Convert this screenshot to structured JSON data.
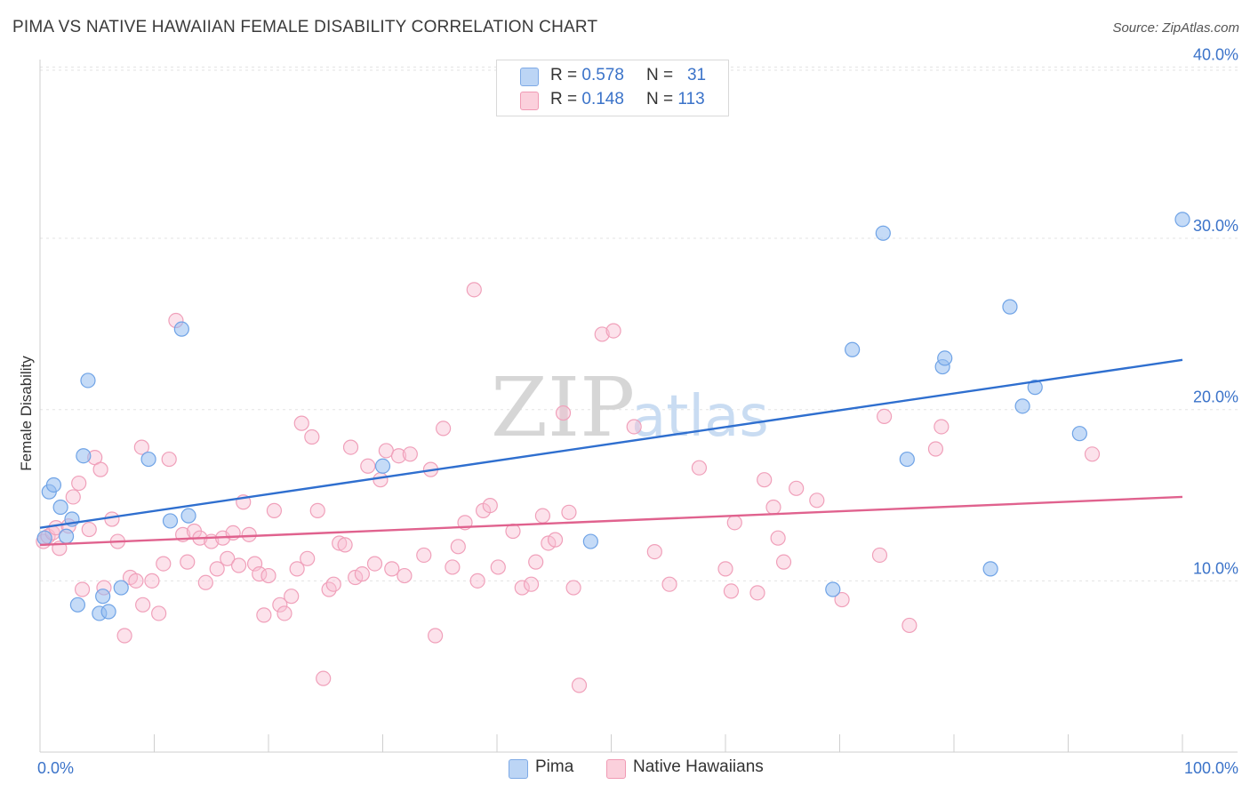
{
  "header": {
    "title": "PIMA VS NATIVE HAWAIIAN FEMALE DISABILITY CORRELATION CHART",
    "source": "Source: ZipAtlas.com"
  },
  "watermark": {
    "text_zip": "ZIP",
    "text_atlas": "atlas"
  },
  "legend_top": {
    "rows": [
      {
        "r_label": "R =",
        "r_value": "0.578",
        "n_label": "N =",
        "n_value": "31"
      },
      {
        "r_label": "R =",
        "r_value": "0.148",
        "n_label": "N =",
        "n_value": "113"
      }
    ]
  },
  "legend_bottom": {
    "items": [
      "Pima",
      "Native Hawaiians"
    ]
  },
  "chart_data": {
    "type": "scatter",
    "title": "PIMA VS NATIVE HAWAIIAN FEMALE DISABILITY CORRELATION CHART",
    "xlabel": "",
    "ylabel": "Female Disability",
    "xlim": [
      0,
      100
    ],
    "ylim": [
      0,
      40.8
    ],
    "x_tick_labels": [
      "0.0%",
      "100.0%"
    ],
    "y_ticks": [
      10,
      20,
      30,
      40
    ],
    "y_tick_labels": [
      "10.0%",
      "20.0%",
      "30.0%",
      "40.0%"
    ],
    "grid": "horizontal dashed",
    "legend_position": "top-center and bottom",
    "colors": {
      "pima": "#6fa3e6",
      "pima_line": "#2f6fcf",
      "hawaiian": "#f4a7bf",
      "hawaiian_line": "#e0628e",
      "tick_label": "#3b73c9"
    },
    "series": [
      {
        "name": "Pima",
        "r": 0.578,
        "n": 31,
        "trend": [
          [
            0,
            13.1
          ],
          [
            100,
            22.9
          ]
        ],
        "points": [
          [
            0.4,
            12.5
          ],
          [
            0.8,
            15.2
          ],
          [
            1.2,
            15.6
          ],
          [
            1.8,
            14.3
          ],
          [
            2.3,
            12.6
          ],
          [
            2.8,
            13.6
          ],
          [
            3.3,
            8.6
          ],
          [
            3.8,
            17.3
          ],
          [
            4.2,
            21.7
          ],
          [
            5.2,
            8.1
          ],
          [
            5.5,
            9.1
          ],
          [
            6.0,
            8.2
          ],
          [
            7.1,
            9.6
          ],
          [
            9.5,
            17.1
          ],
          [
            11.4,
            13.5
          ],
          [
            12.4,
            24.7
          ],
          [
            13.0,
            13.8
          ],
          [
            30.0,
            16.7
          ],
          [
            48.2,
            12.3
          ],
          [
            69.4,
            9.5
          ],
          [
            71.1,
            23.5
          ],
          [
            73.8,
            30.3
          ],
          [
            75.9,
            17.1
          ],
          [
            79.0,
            22.5
          ],
          [
            79.2,
            23.0
          ],
          [
            83.2,
            10.7
          ],
          [
            84.9,
            26.0
          ],
          [
            86.0,
            20.2
          ],
          [
            87.1,
            21.3
          ],
          [
            91.0,
            18.6
          ],
          [
            100.0,
            31.1
          ]
        ]
      },
      {
        "name": "Native Hawaiians",
        "r": 0.148,
        "n": 113,
        "trend": [
          [
            0,
            12.1
          ],
          [
            100,
            14.9
          ]
        ],
        "points": [
          [
            0.3,
            12.3
          ],
          [
            0.7,
            12.6
          ],
          [
            1.1,
            12.8
          ],
          [
            1.4,
            13.1
          ],
          [
            1.7,
            11.9
          ],
          [
            2.5,
            13.2
          ],
          [
            2.9,
            14.9
          ],
          [
            3.4,
            15.7
          ],
          [
            3.7,
            9.5
          ],
          [
            4.3,
            13.0
          ],
          [
            4.8,
            17.2
          ],
          [
            5.3,
            16.5
          ],
          [
            5.6,
            9.6
          ],
          [
            6.3,
            13.6
          ],
          [
            6.8,
            12.3
          ],
          [
            7.4,
            6.8
          ],
          [
            7.9,
            10.2
          ],
          [
            8.4,
            10.0
          ],
          [
            8.9,
            17.8
          ],
          [
            9.0,
            8.6
          ],
          [
            9.8,
            10.0
          ],
          [
            10.4,
            8.1
          ],
          [
            10.8,
            11.0
          ],
          [
            11.3,
            17.1
          ],
          [
            11.9,
            25.2
          ],
          [
            12.5,
            12.7
          ],
          [
            12.9,
            11.1
          ],
          [
            13.5,
            12.9
          ],
          [
            14.0,
            12.5
          ],
          [
            14.5,
            9.9
          ],
          [
            15.0,
            12.3
          ],
          [
            15.5,
            10.7
          ],
          [
            16.0,
            12.5
          ],
          [
            16.4,
            11.3
          ],
          [
            16.9,
            12.8
          ],
          [
            17.4,
            10.9
          ],
          [
            17.8,
            14.6
          ],
          [
            18.3,
            12.7
          ],
          [
            18.8,
            11.0
          ],
          [
            19.2,
            10.4
          ],
          [
            19.6,
            8.0
          ],
          [
            20.0,
            10.3
          ],
          [
            20.5,
            14.1
          ],
          [
            21.0,
            8.6
          ],
          [
            21.4,
            8.1
          ],
          [
            22.0,
            9.1
          ],
          [
            22.5,
            10.7
          ],
          [
            22.9,
            19.2
          ],
          [
            23.4,
            11.3
          ],
          [
            23.8,
            18.4
          ],
          [
            24.3,
            14.1
          ],
          [
            24.8,
            4.3
          ],
          [
            25.3,
            9.5
          ],
          [
            25.7,
            9.8
          ],
          [
            26.2,
            12.2
          ],
          [
            26.7,
            12.1
          ],
          [
            27.2,
            17.8
          ],
          [
            27.6,
            10.2
          ],
          [
            28.2,
            10.4
          ],
          [
            28.7,
            16.7
          ],
          [
            29.3,
            11.0
          ],
          [
            29.8,
            15.9
          ],
          [
            30.3,
            17.6
          ],
          [
            30.8,
            10.7
          ],
          [
            31.4,
            17.3
          ],
          [
            31.9,
            10.3
          ],
          [
            32.4,
            17.4
          ],
          [
            33.6,
            11.5
          ],
          [
            34.2,
            16.5
          ],
          [
            34.6,
            6.8
          ],
          [
            35.3,
            18.9
          ],
          [
            36.1,
            10.8
          ],
          [
            36.6,
            12.0
          ],
          [
            37.2,
            13.4
          ],
          [
            38.0,
            27.0
          ],
          [
            38.3,
            10.0
          ],
          [
            38.8,
            14.1
          ],
          [
            39.4,
            14.4
          ],
          [
            40.1,
            10.8
          ],
          [
            41.4,
            12.9
          ],
          [
            42.2,
            9.6
          ],
          [
            43.0,
            9.8
          ],
          [
            43.4,
            11.1
          ],
          [
            44.0,
            13.8
          ],
          [
            44.5,
            12.2
          ],
          [
            45.1,
            12.4
          ],
          [
            45.8,
            19.8
          ],
          [
            46.3,
            14.0
          ],
          [
            46.7,
            9.6
          ],
          [
            47.2,
            3.9
          ],
          [
            49.2,
            24.4
          ],
          [
            50.2,
            24.6
          ],
          [
            52.0,
            19.0
          ],
          [
            53.8,
            11.7
          ],
          [
            55.1,
            9.8
          ],
          [
            57.7,
            16.6
          ],
          [
            60.0,
            10.7
          ],
          [
            60.5,
            9.4
          ],
          [
            60.8,
            13.4
          ],
          [
            62.8,
            9.3
          ],
          [
            63.4,
            15.9
          ],
          [
            64.2,
            14.3
          ],
          [
            64.6,
            12.5
          ],
          [
            65.1,
            11.1
          ],
          [
            66.2,
            15.4
          ],
          [
            68.0,
            14.7
          ],
          [
            70.2,
            8.9
          ],
          [
            73.5,
            11.5
          ],
          [
            73.9,
            19.6
          ],
          [
            76.1,
            7.4
          ],
          [
            78.4,
            17.7
          ],
          [
            78.9,
            19.0
          ],
          [
            92.1,
            17.4
          ]
        ]
      }
    ]
  }
}
